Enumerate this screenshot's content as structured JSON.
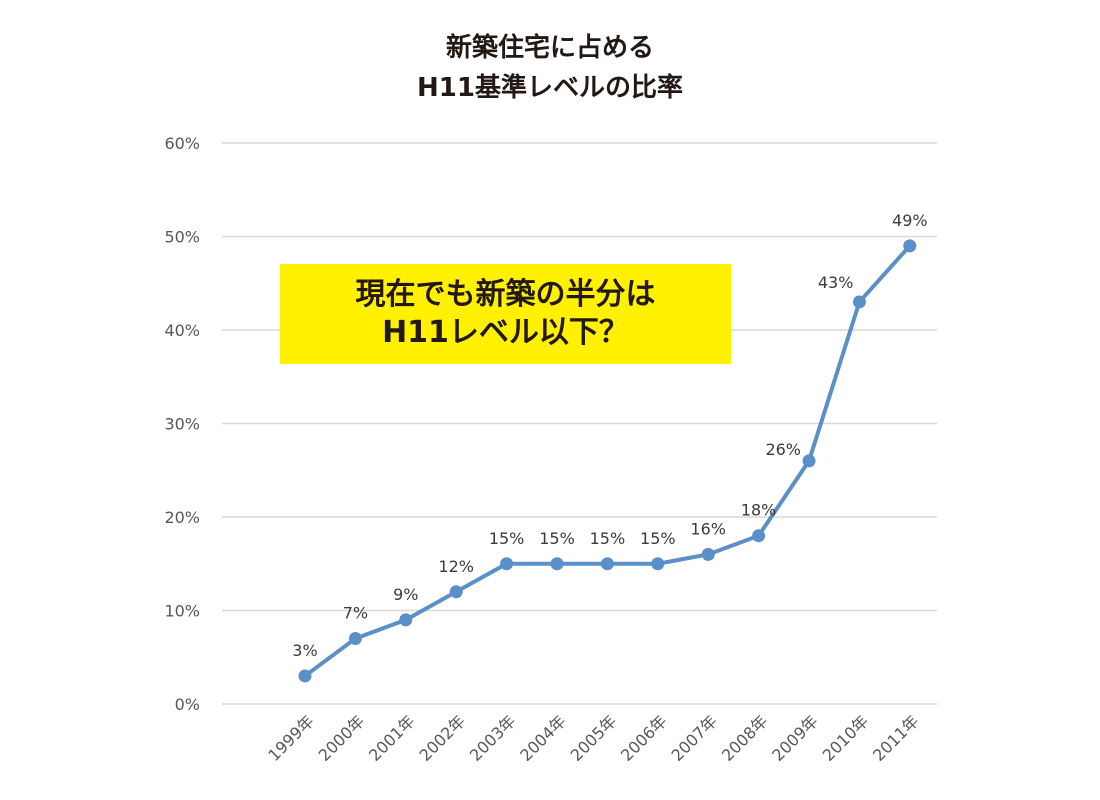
{
  "chart_data": {
    "type": "line",
    "title": [
      "新築住宅に占める",
      "H11基準レベルの比率"
    ],
    "callout": [
      "現在でも新築の半分は",
      "H11レベル以下？"
    ],
    "categories": [
      "1999年",
      "2000年",
      "2001年",
      "2002年",
      "2003年",
      "2004年",
      "2005年",
      "2006年",
      "2007年",
      "2008年",
      "2009年",
      "2010年",
      "2011年"
    ],
    "values": [
      3,
      7,
      9,
      12,
      15,
      15,
      15,
      15,
      16,
      18,
      26,
      43,
      49
    ],
    "data_labels": [
      "3%",
      "7%",
      "9%",
      "12%",
      "15%",
      "15%",
      "15%",
      "15%",
      "16%",
      "18%",
      "26%",
      "43%",
      "49%"
    ],
    "y_ticks": [
      0,
      10,
      20,
      30,
      40,
      50,
      60
    ],
    "y_tick_labels": [
      "0%",
      "10%",
      "20%",
      "30%",
      "40%",
      "50%",
      "60%"
    ],
    "ylim": [
      0,
      60
    ],
    "grid": true,
    "line_color": "#5b8fc7",
    "grid_color": "#d9d9d9",
    "callout_color": "#fff100"
  }
}
